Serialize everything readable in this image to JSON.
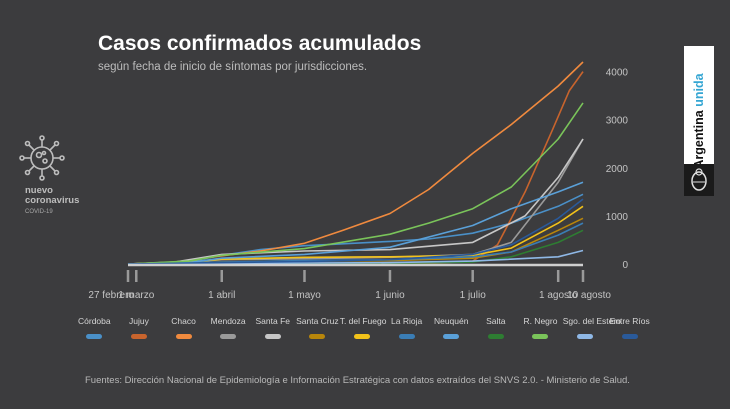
{
  "title": "Casos confirmados acumulados",
  "subtitle": "según fecha de inicio de síntomas por jurisdicciones.",
  "logo": {
    "line1": "nuevo",
    "line2": "coronavirus",
    "line3": "COVID-19"
  },
  "brand": {
    "word1": "Argentina",
    "word2": "unida"
  },
  "source": "Fuentes: Dirección Nacional de Epidemiología e Información Estratégica con datos extraídos del SNVS 2.0. - Ministerio de Salud.",
  "chart_data": {
    "type": "line",
    "title": "Casos confirmados acumulados",
    "subtitle": "según fecha de inicio de síntomas por jurisdicciones.",
    "ylim": [
      0,
      4200
    ],
    "y_ticks": [
      0,
      1000,
      2000,
      3000,
      4000
    ],
    "y_tick_labels": [
      "0",
      "1000",
      "2000",
      "3000",
      "4000"
    ],
    "x_start": "2020-02-27",
    "x_end": "2020-08-10",
    "x_ticks": [
      {
        "date": "2020-02-27",
        "label": "27 febrero"
      },
      {
        "date": "2020-03-01",
        "label": "1 marzo"
      },
      {
        "date": "2020-04-01",
        "label": "1 abril"
      },
      {
        "date": "2020-05-01",
        "label": "1 mayo"
      },
      {
        "date": "2020-06-01",
        "label": "1 junio"
      },
      {
        "date": "2020-07-01",
        "label": "1 julio"
      },
      {
        "date": "2020-08-01",
        "label": "1 agosto"
      },
      {
        "date": "2020-08-10",
        "label": "10 agosto"
      }
    ],
    "grid": false,
    "legend_position": "bottom",
    "series": [
      {
        "name": "Córdoba",
        "color": "#4a90c8",
        "points": [
          [
            "2020-02-27",
            0
          ],
          [
            "2020-03-20",
            50
          ],
          [
            "2020-04-01",
            180
          ],
          [
            "2020-04-15",
            300
          ],
          [
            "2020-05-01",
            380
          ],
          [
            "2020-05-15",
            420
          ],
          [
            "2020-06-01",
            470
          ],
          [
            "2020-06-15",
            520
          ],
          [
            "2020-07-01",
            640
          ],
          [
            "2020-07-15",
            850
          ],
          [
            "2020-08-01",
            1200
          ],
          [
            "2020-08-10",
            1450
          ]
        ]
      },
      {
        "name": "Jujuy",
        "color": "#c8642d",
        "points": [
          [
            "2020-02-27",
            0
          ],
          [
            "2020-06-15",
            8
          ],
          [
            "2020-07-01",
            60
          ],
          [
            "2020-07-10",
            400
          ],
          [
            "2020-07-20",
            1500
          ],
          [
            "2020-07-30",
            2800
          ],
          [
            "2020-08-05",
            3600
          ],
          [
            "2020-08-10",
            4000
          ]
        ]
      },
      {
        "name": "Chaco",
        "color": "#f08a3e",
        "points": [
          [
            "2020-02-27",
            0
          ],
          [
            "2020-03-15",
            40
          ],
          [
            "2020-04-01",
            170
          ],
          [
            "2020-04-15",
            270
          ],
          [
            "2020-05-01",
            430
          ],
          [
            "2020-05-15",
            700
          ],
          [
            "2020-06-01",
            1050
          ],
          [
            "2020-06-15",
            1550
          ],
          [
            "2020-07-01",
            2300
          ],
          [
            "2020-07-15",
            2900
          ],
          [
            "2020-08-01",
            3700
          ],
          [
            "2020-08-10",
            4200
          ]
        ]
      },
      {
        "name": "Mendoza",
        "color": "#9a9a9a",
        "points": [
          [
            "2020-02-27",
            0
          ],
          [
            "2020-03-20",
            40
          ],
          [
            "2020-04-01",
            90
          ],
          [
            "2020-05-01",
            110
          ],
          [
            "2020-06-01",
            140
          ],
          [
            "2020-07-01",
            200
          ],
          [
            "2020-07-15",
            450
          ],
          [
            "2020-08-01",
            1700
          ],
          [
            "2020-08-10",
            2600
          ]
        ]
      },
      {
        "name": "Santa Fe",
        "color": "#c7c7c7",
        "points": [
          [
            "2020-02-27",
            0
          ],
          [
            "2020-03-15",
            40
          ],
          [
            "2020-04-01",
            200
          ],
          [
            "2020-05-01",
            270
          ],
          [
            "2020-06-01",
            300
          ],
          [
            "2020-07-01",
            450
          ],
          [
            "2020-07-20",
            1000
          ],
          [
            "2020-08-01",
            1800
          ],
          [
            "2020-08-10",
            2600
          ]
        ]
      },
      {
        "name": "Santa Cruz",
        "color": "#b8860b",
        "points": [
          [
            "2020-02-27",
            0
          ],
          [
            "2020-04-01",
            40
          ],
          [
            "2020-05-01",
            60
          ],
          [
            "2020-06-01",
            70
          ],
          [
            "2020-07-01",
            120
          ],
          [
            "2020-07-15",
            250
          ],
          [
            "2020-08-01",
            700
          ],
          [
            "2020-08-10",
            950
          ]
        ]
      },
      {
        "name": "T. del Fuego",
        "color": "#f2c21a",
        "points": [
          [
            "2020-02-27",
            0
          ],
          [
            "2020-03-20",
            40
          ],
          [
            "2020-04-01",
            100
          ],
          [
            "2020-05-01",
            140
          ],
          [
            "2020-06-01",
            150
          ],
          [
            "2020-07-01",
            180
          ],
          [
            "2020-07-15",
            330
          ],
          [
            "2020-08-01",
            850
          ],
          [
            "2020-08-10",
            1200
          ]
        ]
      },
      {
        "name": "La Rioja",
        "color": "#3a7db5",
        "points": [
          [
            "2020-02-27",
            0
          ],
          [
            "2020-04-01",
            40
          ],
          [
            "2020-05-01",
            70
          ],
          [
            "2020-06-01",
            90
          ],
          [
            "2020-07-01",
            150
          ],
          [
            "2020-07-15",
            250
          ],
          [
            "2020-08-01",
            600
          ],
          [
            "2020-08-10",
            850
          ]
        ]
      },
      {
        "name": "Neuquén",
        "color": "#5aa0d8",
        "points": [
          [
            "2020-02-27",
            0
          ],
          [
            "2020-03-20",
            30
          ],
          [
            "2020-04-01",
            120
          ],
          [
            "2020-05-01",
            200
          ],
          [
            "2020-06-01",
            350
          ],
          [
            "2020-07-01",
            800
          ],
          [
            "2020-07-15",
            1150
          ],
          [
            "2020-08-01",
            1500
          ],
          [
            "2020-08-10",
            1700
          ]
        ]
      },
      {
        "name": "Salta",
        "color": "#2e7d32",
        "points": [
          [
            "2020-02-27",
            0
          ],
          [
            "2020-06-01",
            10
          ],
          [
            "2020-07-01",
            40
          ],
          [
            "2020-07-15",
            150
          ],
          [
            "2020-08-01",
            450
          ],
          [
            "2020-08-10",
            700
          ]
        ]
      },
      {
        "name": "R. Negro",
        "color": "#7ac45a",
        "points": [
          [
            "2020-02-27",
            0
          ],
          [
            "2020-03-20",
            60
          ],
          [
            "2020-04-01",
            180
          ],
          [
            "2020-05-01",
            320
          ],
          [
            "2020-06-01",
            620
          ],
          [
            "2020-06-15",
            850
          ],
          [
            "2020-07-01",
            1150
          ],
          [
            "2020-07-15",
            1600
          ],
          [
            "2020-08-01",
            2600
          ],
          [
            "2020-08-10",
            3350
          ]
        ]
      },
      {
        "name": "Sgo. del Estero",
        "color": "#8fb8e6",
        "points": [
          [
            "2020-02-27",
            0
          ],
          [
            "2020-04-01",
            10
          ],
          [
            "2020-05-01",
            20
          ],
          [
            "2020-06-01",
            30
          ],
          [
            "2020-07-01",
            60
          ],
          [
            "2020-08-01",
            150
          ],
          [
            "2020-08-10",
            280
          ]
        ]
      },
      {
        "name": "Entre Ríos",
        "color": "#2a5a9a",
        "points": [
          [
            "2020-02-27",
            0
          ],
          [
            "2020-04-01",
            30
          ],
          [
            "2020-05-01",
            50
          ],
          [
            "2020-06-01",
            90
          ],
          [
            "2020-07-01",
            200
          ],
          [
            "2020-07-15",
            400
          ],
          [
            "2020-08-01",
            950
          ],
          [
            "2020-08-10",
            1350
          ]
        ]
      }
    ]
  }
}
